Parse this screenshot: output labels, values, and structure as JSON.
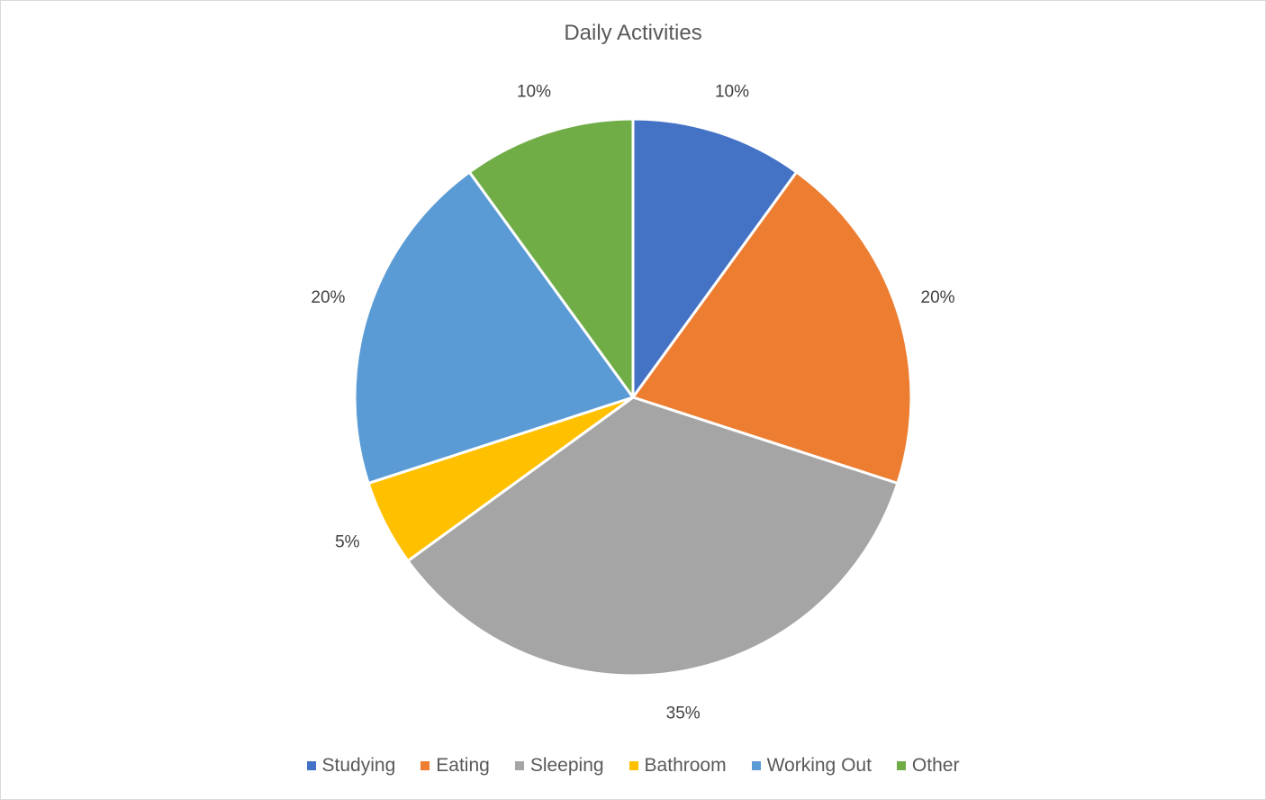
{
  "chart_data": {
    "type": "pie",
    "title": "Daily Activities",
    "categories": [
      "Studying",
      "Eating",
      "Sleeping",
      "Bathroom",
      "Working Out",
      "Other"
    ],
    "values": [
      10,
      20,
      35,
      5,
      20,
      10
    ],
    "labels": [
      "10%",
      "20%",
      "35%",
      "5%",
      "20%",
      "10%"
    ],
    "colors": [
      "#4472c4",
      "#ed7d31",
      "#a5a5a5",
      "#ffc000",
      "#5b9bd5",
      "#70ad47"
    ],
    "legend": "bottom",
    "start_angle": "top, clockwise"
  }
}
